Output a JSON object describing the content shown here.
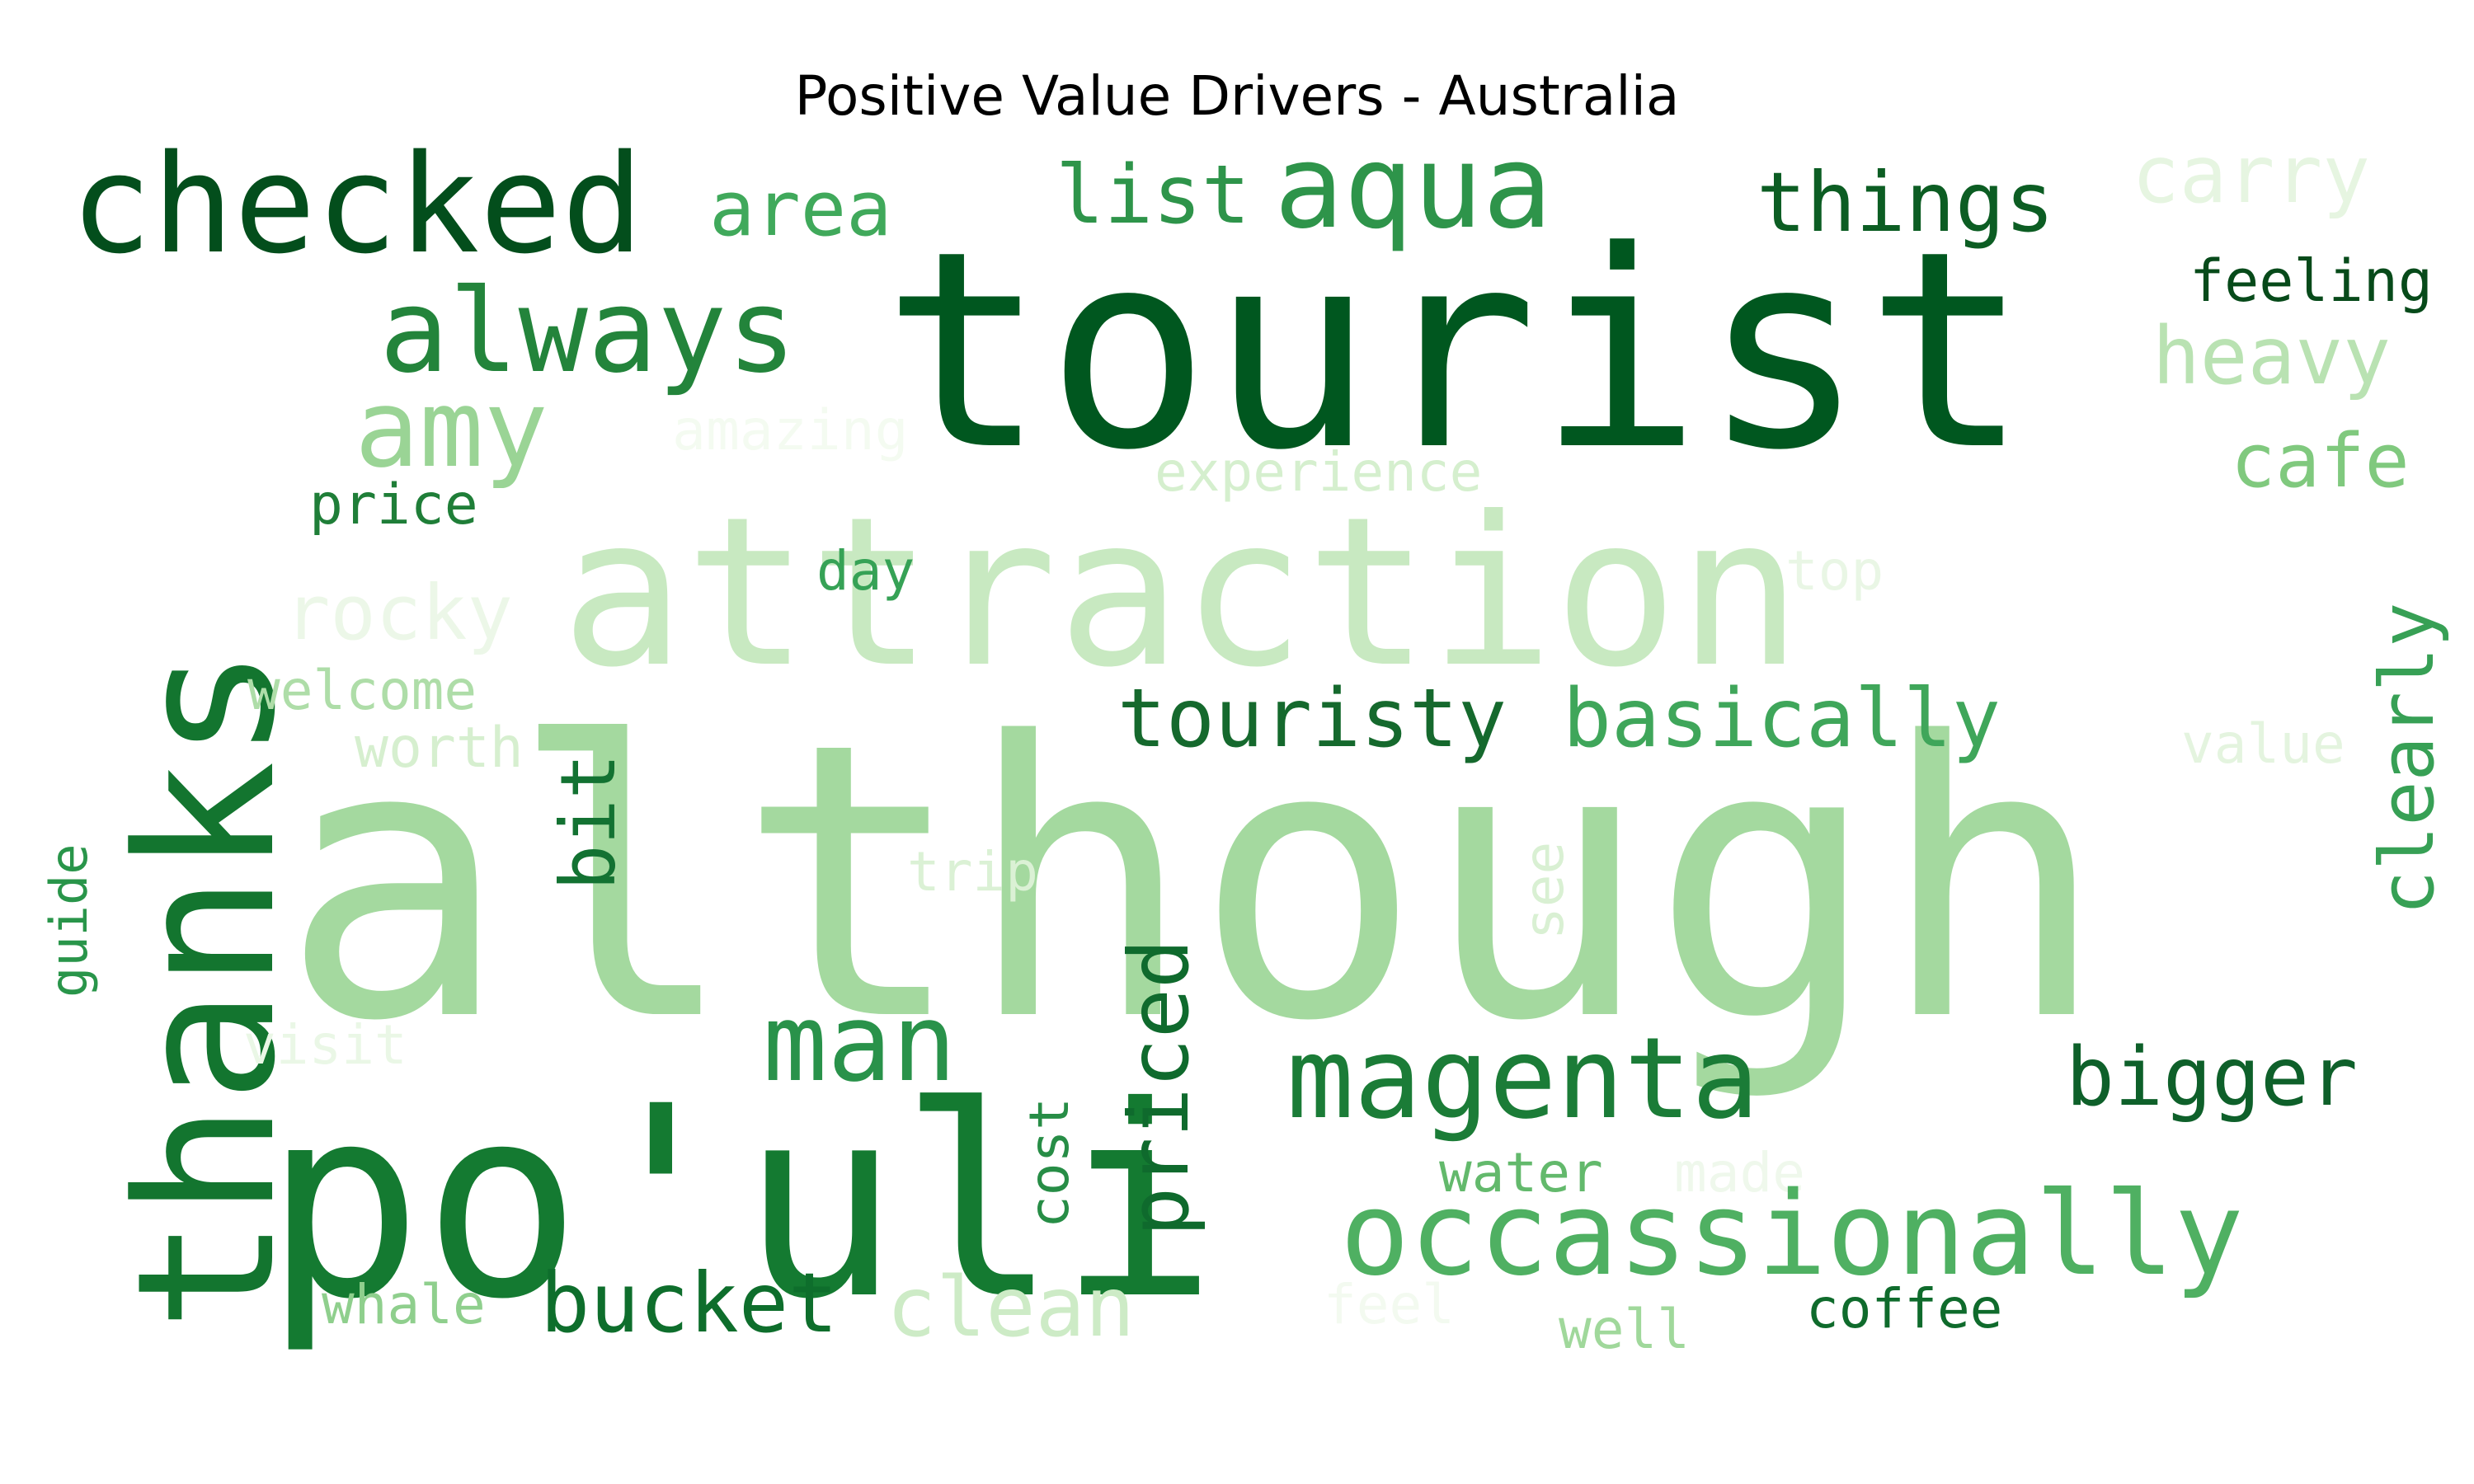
{
  "title": "Positive Value Drivers - Australia",
  "words": [
    {
      "text": "although",
      "color": "#a4d99f"
    },
    {
      "text": "attraction",
      "color": "#c8e9c1"
    },
    {
      "text": "tourist",
      "color": "#00571f"
    },
    {
      "text": "thanks",
      "color": "#13752f"
    },
    {
      "text": "po'uli",
      "color": "#147a31"
    },
    {
      "text": "checked",
      "color": "#034e1c"
    },
    {
      "text": "always",
      "color": "#23843b"
    },
    {
      "text": "amy",
      "color": "#9ad495"
    },
    {
      "text": "aqua",
      "color": "#2e944a"
    },
    {
      "text": "list",
      "color": "#2e944a"
    },
    {
      "text": "area",
      "color": "#40a95b"
    },
    {
      "text": "things",
      "color": "#0c5d23"
    },
    {
      "text": "carry",
      "color": "#e6f5e1"
    },
    {
      "text": "feeling",
      "color": "#074a1a"
    },
    {
      "text": "heavy",
      "color": "#b9e2b2"
    },
    {
      "text": "cafe",
      "color": "#80c97e"
    },
    {
      "text": "clearly",
      "color": "#37a055"
    },
    {
      "text": "amazing",
      "color": "#f4fbf1"
    },
    {
      "text": "experience",
      "color": "#d5efce"
    },
    {
      "text": "price",
      "color": "#1f7e38"
    },
    {
      "text": "day",
      "color": "#36a256"
    },
    {
      "text": "top",
      "color": "#e9f6e5"
    },
    {
      "text": "rocky",
      "color": "#ecf7e8"
    },
    {
      "text": "welcome",
      "color": "#aedda8"
    },
    {
      "text": "worth",
      "color": "#d6efcf"
    },
    {
      "text": "touristy",
      "color": "#15692d"
    },
    {
      "text": "basically",
      "color": "#3fa65a"
    },
    {
      "text": "value",
      "color": "#e4f4df"
    },
    {
      "text": "bit",
      "color": "#137232"
    },
    {
      "text": "trip",
      "color": "#dbf1d5"
    },
    {
      "text": "see",
      "color": "#d9f0d3"
    },
    {
      "text": "guide",
      "color": "#29954a"
    },
    {
      "text": "visit",
      "color": "#eaf7e6"
    },
    {
      "text": "man",
      "color": "#29924a"
    },
    {
      "text": "priced",
      "color": "#0f6a2d"
    },
    {
      "text": "magenta",
      "color": "#1b7c37"
    },
    {
      "text": "bigger",
      "color": "#0e602a"
    },
    {
      "text": "cost",
      "color": "#278d46"
    },
    {
      "text": "water",
      "color": "#63b96c"
    },
    {
      "text": "made",
      "color": "#eff8ec"
    },
    {
      "text": "occassionally",
      "color": "#4fb062"
    },
    {
      "text": "whale",
      "color": "#8fcf8d"
    },
    {
      "text": "bucket",
      "color": "#0e6e2c"
    },
    {
      "text": "clean",
      "color": "#cdebc6"
    },
    {
      "text": "feel",
      "color": "#f3faf0"
    },
    {
      "text": "well",
      "color": "#a0d89b"
    },
    {
      "text": "coffee",
      "color": "#0f6b2c"
    }
  ]
}
